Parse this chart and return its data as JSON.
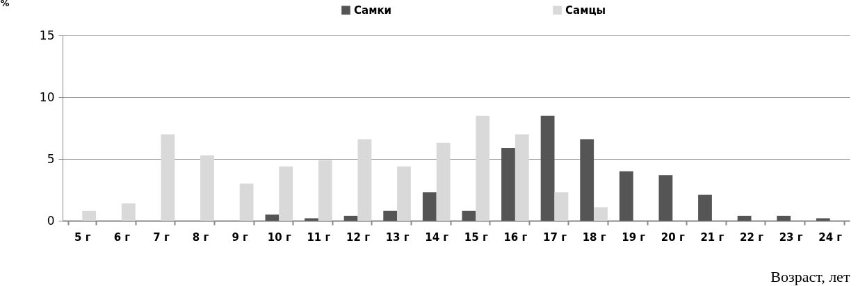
{
  "chart_data": {
    "type": "bar",
    "xlabel": "Возраст, лет",
    "ylabel": "%",
    "categories": [
      "5 г",
      "6 г",
      "7 г",
      "8 г",
      "9 г",
      "10 г",
      "11 г",
      "12 г",
      "13 г",
      "14 г",
      "15 г",
      "16 г",
      "17 г",
      "18 г",
      "19 г",
      "20 г",
      "21 г",
      "22 г",
      "23 г",
      "24 г"
    ],
    "series": [
      {
        "name": "Самки",
        "color": "#555555",
        "values": [
          0,
          0,
          0,
          0,
          0,
          0.5,
          0.2,
          0.4,
          0.8,
          2.3,
          0.8,
          5.9,
          8.5,
          6.6,
          4.0,
          3.7,
          2.1,
          0.4,
          0.4,
          0.2
        ]
      },
      {
        "name": "Самцы",
        "color": "#d9d9d9",
        "values": [
          0.8,
          1.4,
          7.0,
          5.3,
          3.0,
          4.4,
          4.9,
          6.6,
          4.4,
          6.3,
          8.5,
          7.0,
          2.3,
          1.1,
          0,
          0,
          0,
          0,
          0,
          0
        ]
      }
    ],
    "ylim": [
      0,
      15
    ],
    "yticks": [
      0,
      5,
      10,
      15
    ],
    "grid": "y",
    "legend": "top"
  }
}
